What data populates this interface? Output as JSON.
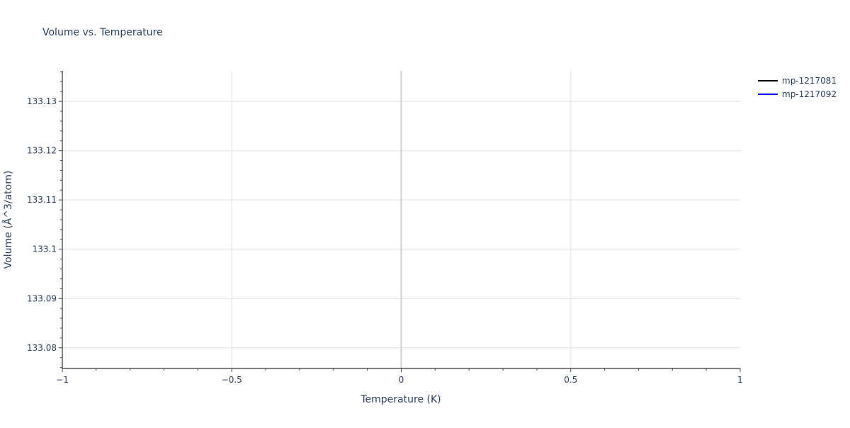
{
  "chart_data": {
    "type": "line",
    "title": "Volume vs. Temperature",
    "xlabel": "Temperature (K)",
    "ylabel": "Volume (Å^3/atom)",
    "xlim": [
      -1,
      1
    ],
    "ylim": [
      133.0758,
      133.1362
    ],
    "x_ticks": [
      -1,
      -0.5,
      0,
      0.5,
      1
    ],
    "x_tick_labels": [
      "−1",
      "−0.5",
      "0",
      "0.5",
      "1"
    ],
    "y_ticks": [
      133.08,
      133.09,
      133.1,
      133.11,
      133.12,
      133.13
    ],
    "y_tick_labels": [
      "133.08",
      "133.09",
      "133.1",
      "133.11",
      "133.12",
      "133.13"
    ],
    "grid": true,
    "legend_position": "top-right",
    "series": [
      {
        "name": "mp-1217081",
        "color": "#000000",
        "x": [],
        "y": []
      },
      {
        "name": "mp-1217092",
        "color": "#0000ff",
        "x": [],
        "y": []
      }
    ]
  }
}
